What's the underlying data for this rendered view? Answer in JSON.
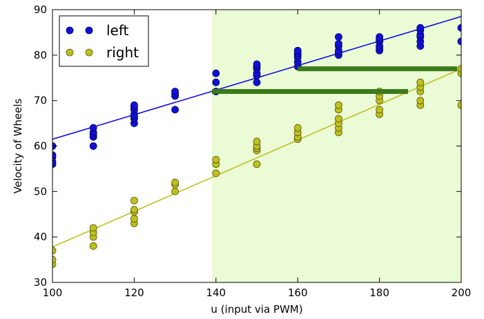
{
  "chart_data": {
    "type": "scatter",
    "xlabel": "u (input via PWM)",
    "ylabel": "Velocity of Wheels",
    "xlim": [
      100,
      200
    ],
    "ylim": [
      30,
      90
    ],
    "xticks": [
      "100",
      "120",
      "140",
      "160",
      "180",
      "200"
    ],
    "yticks": [
      "30",
      "40",
      "50",
      "60",
      "70",
      "80",
      "90"
    ],
    "grid": false,
    "legend_position": "top-left",
    "shaded_region": {
      "x": [
        139,
        200
      ],
      "color": "#ebfbd5"
    },
    "series": [
      {
        "name": "left",
        "color": "#1010d8",
        "points": [
          [
            100,
            56
          ],
          [
            100,
            56.5
          ],
          [
            100,
            57.5
          ],
          [
            100,
            58
          ],
          [
            100,
            60
          ],
          [
            110,
            60
          ],
          [
            110,
            62
          ],
          [
            110,
            62.5
          ],
          [
            110,
            63
          ],
          [
            110,
            64
          ],
          [
            120,
            65
          ],
          [
            120,
            66
          ],
          [
            120,
            66.5
          ],
          [
            120,
            67
          ],
          [
            120,
            68
          ],
          [
            120,
            68.5
          ],
          [
            120,
            69
          ],
          [
            130,
            68
          ],
          [
            130,
            71
          ],
          [
            130,
            71.5
          ],
          [
            130,
            72
          ],
          [
            140,
            72
          ],
          [
            140,
            74
          ],
          [
            140,
            76
          ],
          [
            150,
            74
          ],
          [
            150,
            75.5
          ],
          [
            150,
            76
          ],
          [
            150,
            77
          ],
          [
            150,
            77.5
          ],
          [
            150,
            78
          ],
          [
            160,
            77.5
          ],
          [
            160,
            78.5
          ],
          [
            160,
            79.5
          ],
          [
            160,
            80
          ],
          [
            160,
            80.5
          ],
          [
            160,
            81
          ],
          [
            170,
            80
          ],
          [
            170,
            80.5
          ],
          [
            170,
            81
          ],
          [
            170,
            82
          ],
          [
            170,
            82.5
          ],
          [
            170,
            84
          ],
          [
            180,
            81
          ],
          [
            180,
            81.5
          ],
          [
            180,
            82
          ],
          [
            180,
            83
          ],
          [
            180,
            83.5
          ],
          [
            180,
            84
          ],
          [
            190,
            82
          ],
          [
            190,
            83
          ],
          [
            190,
            84
          ],
          [
            190,
            84.5
          ],
          [
            190,
            85.5
          ],
          [
            190,
            86
          ],
          [
            200,
            83
          ],
          [
            200,
            86
          ]
        ],
        "fit": {
          "x": [
            100,
            200
          ],
          "y": [
            61.5,
            88.5
          ]
        }
      },
      {
        "name": "right",
        "color": "#bfbf1f",
        "points": [
          [
            100,
            34
          ],
          [
            100,
            35
          ],
          [
            100,
            37
          ],
          [
            110,
            38
          ],
          [
            110,
            40
          ],
          [
            110,
            41
          ],
          [
            110,
            42
          ],
          [
            120,
            43
          ],
          [
            120,
            44
          ],
          [
            120,
            45.5
          ],
          [
            120,
            46
          ],
          [
            120,
            48
          ],
          [
            130,
            50
          ],
          [
            130,
            51.5
          ],
          [
            130,
            52
          ],
          [
            140,
            54
          ],
          [
            140,
            56
          ],
          [
            140,
            57
          ],
          [
            150,
            56
          ],
          [
            150,
            59
          ],
          [
            150,
            59.5
          ],
          [
            150,
            60
          ],
          [
            150,
            61
          ],
          [
            160,
            61.5
          ],
          [
            160,
            62
          ],
          [
            160,
            63
          ],
          [
            160,
            64
          ],
          [
            170,
            63
          ],
          [
            170,
            64
          ],
          [
            170,
            65
          ],
          [
            170,
            66
          ],
          [
            170,
            68
          ],
          [
            170,
            69
          ],
          [
            180,
            67
          ],
          [
            180,
            68
          ],
          [
            180,
            70
          ],
          [
            180,
            71
          ],
          [
            180,
            72
          ],
          [
            190,
            69
          ],
          [
            190,
            70
          ],
          [
            190,
            72
          ],
          [
            190,
            73
          ],
          [
            190,
            74
          ],
          [
            200,
            69
          ],
          [
            200,
            76
          ],
          [
            200,
            77
          ]
        ],
        "fit": {
          "x": [
            100,
            200
          ],
          "y": [
            37.8,
            77
          ]
        }
      }
    ],
    "annotation_lines": [
      {
        "x": [
          139,
          187
        ],
        "y": 72,
        "color": "#3b7a1a"
      },
      {
        "x": [
          160,
          199
        ],
        "y": 77,
        "color": "#3b7a1a"
      }
    ]
  }
}
